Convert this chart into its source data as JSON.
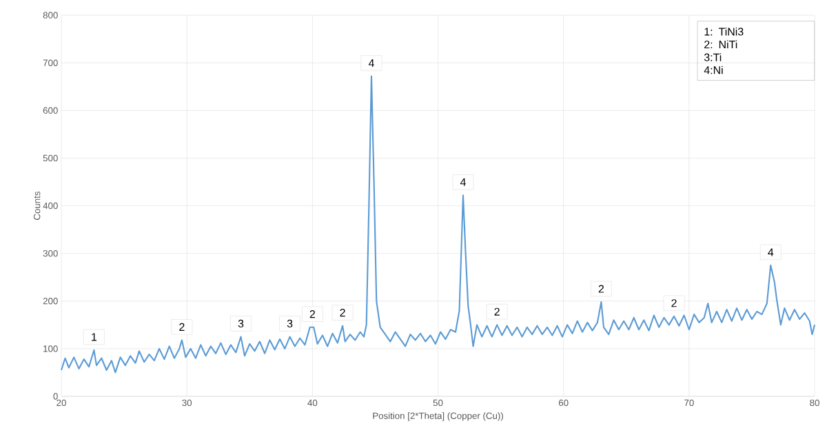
{
  "chart_data": {
    "type": "line",
    "xlabel": "Position [2*Theta] (Copper (Cu))",
    "ylabel": "Counts",
    "xlim": [
      20,
      80
    ],
    "ylim": [
      0,
      800
    ],
    "xticks": [
      20,
      30,
      40,
      50,
      60,
      70,
      80
    ],
    "yticks": [
      0,
      100,
      200,
      300,
      400,
      500,
      600,
      700,
      800
    ],
    "grid": true,
    "marker": "none",
    "line_style": "solid",
    "x": [
      20,
      20.3,
      20.6,
      21,
      21.4,
      21.8,
      22.2,
      22.6,
      22.8,
      23.2,
      23.6,
      24,
      24.3,
      24.7,
      25.1,
      25.5,
      25.9,
      26.2,
      26.6,
      27,
      27.4,
      27.8,
      28.2,
      28.6,
      29,
      29.4,
      29.6,
      29.9,
      30.3,
      30.7,
      31.1,
      31.5,
      31.9,
      32.3,
      32.7,
      33.1,
      33.5,
      33.9,
      34.3,
      34.6,
      35,
      35.4,
      35.8,
      36.2,
      36.6,
      37,
      37.4,
      37.8,
      38.2,
      38.6,
      39,
      39.4,
      39.8,
      40.1,
      40.4,
      40.8,
      41.2,
      41.6,
      42,
      42.4,
      42.6,
      43,
      43.4,
      43.8,
      44.1,
      44.3,
      44.5,
      44.7,
      44.9,
      45.1,
      45.4,
      45.8,
      46.2,
      46.6,
      47,
      47.4,
      47.8,
      48.2,
      48.6,
      49,
      49.4,
      49.8,
      50.2,
      50.6,
      51,
      51.4,
      51.7,
      52,
      52.2,
      52.4,
      52.6,
      52.8,
      53.1,
      53.5,
      53.9,
      54.3,
      54.7,
      55.1,
      55.5,
      55.9,
      56.3,
      56.7,
      57.1,
      57.5,
      57.9,
      58.3,
      58.7,
      59.1,
      59.5,
      59.9,
      60.3,
      60.7,
      61.1,
      61.5,
      61.9,
      62.3,
      62.7,
      63,
      63.2,
      63.6,
      64,
      64.4,
      64.8,
      65.2,
      65.6,
      66,
      66.4,
      66.8,
      67.2,
      67.6,
      68,
      68.4,
      68.8,
      69.2,
      69.6,
      70,
      70.4,
      70.8,
      71.2,
      71.5,
      71.8,
      72.2,
      72.6,
      73,
      73.4,
      73.8,
      74.2,
      74.6,
      75,
      75.4,
      75.8,
      76.2,
      76.5,
      76.8,
      77,
      77.3,
      77.6,
      78,
      78.4,
      78.8,
      79.2,
      79.6,
      79.8,
      80
    ],
    "series": [
      {
        "color": "#5b9bd5",
        "values": [
          55,
          80,
          60,
          82,
          58,
          78,
          62,
          97,
          65,
          80,
          55,
          75,
          50,
          82,
          65,
          85,
          70,
          95,
          72,
          88,
          75,
          100,
          78,
          105,
          80,
          100,
          118,
          82,
          100,
          80,
          108,
          85,
          105,
          90,
          112,
          88,
          108,
          92,
          125,
          85,
          110,
          95,
          115,
          90,
          118,
          98,
          120,
          100,
          125,
          105,
          122,
          108,
          145,
          145,
          110,
          128,
          105,
          132,
          112,
          148,
          115,
          130,
          118,
          135,
          125,
          150,
          400,
          672,
          450,
          200,
          145,
          130,
          115,
          135,
          120,
          105,
          130,
          118,
          132,
          115,
          128,
          110,
          135,
          120,
          140,
          135,
          180,
          422,
          300,
          190,
          150,
          105,
          150,
          125,
          148,
          125,
          150,
          128,
          148,
          128,
          145,
          125,
          145,
          130,
          148,
          130,
          145,
          128,
          148,
          125,
          150,
          132,
          158,
          135,
          155,
          138,
          155,
          198,
          145,
          130,
          160,
          140,
          158,
          140,
          165,
          140,
          160,
          138,
          170,
          145,
          165,
          150,
          168,
          148,
          170,
          140,
          172,
          155,
          165,
          195,
          155,
          178,
          155,
          182,
          158,
          185,
          160,
          182,
          162,
          178,
          172,
          195,
          275,
          240,
          200,
          150,
          185,
          160,
          182,
          162,
          175,
          158,
          130,
          150
        ]
      }
    ],
    "annotations": [
      {
        "text": "1",
        "x": 22.6,
        "y": 97
      },
      {
        "text": "2",
        "x": 29.6,
        "y": 118
      },
      {
        "text": "3",
        "x": 34.3,
        "y": 125
      },
      {
        "text": "3",
        "x": 38.2,
        "y": 125
      },
      {
        "text": "2",
        "x": 40,
        "y": 145
      },
      {
        "text": "2",
        "x": 42.4,
        "y": 148
      },
      {
        "text": "4",
        "x": 44.7,
        "y": 672
      },
      {
        "text": "4",
        "x": 52,
        "y": 422
      },
      {
        "text": "2",
        "x": 54.7,
        "y": 150
      },
      {
        "text": "2",
        "x": 63,
        "y": 198
      },
      {
        "text": "2",
        "x": 68.8,
        "y": 168
      },
      {
        "text": "4",
        "x": 76.5,
        "y": 275
      },
      "1: TiNi3",
      "2: NiTi",
      "3:Ti",
      "4:Ni"
    ]
  }
}
